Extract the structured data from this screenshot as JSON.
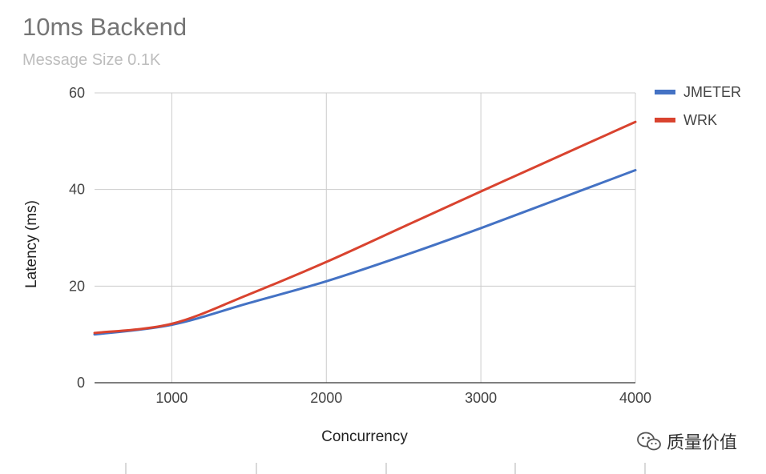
{
  "chart_data": {
    "type": "line",
    "title": "10ms Backend",
    "subtitle": "Message Size 0.1K",
    "xlabel": "Concurrency",
    "ylabel": "Latency (ms)",
    "xlim": [
      500,
      4000
    ],
    "ylim": [
      0,
      60
    ],
    "x_ticks": [
      1000,
      2000,
      3000,
      4000
    ],
    "y_ticks": [
      0,
      20,
      40,
      60
    ],
    "grid": true,
    "legend_position": "top-right",
    "series": [
      {
        "name": "JMETER",
        "color": "#4472c4",
        "x": [
          500,
          1000,
          1500,
          2000,
          2500,
          3000,
          3500,
          4000
        ],
        "y": [
          10,
          12,
          16.5,
          21,
          26.3,
          32,
          38,
          44
        ]
      },
      {
        "name": "WRK",
        "color": "#d9432f",
        "x": [
          500,
          1000,
          1500,
          2000,
          2500,
          3000,
          3500,
          4000
        ],
        "y": [
          10.3,
          12.2,
          18.3,
          25,
          32.3,
          39.6,
          46.8,
          54
        ]
      }
    ]
  },
  "watermark": {
    "text": "质量价值",
    "icon": "wechat-icon"
  }
}
